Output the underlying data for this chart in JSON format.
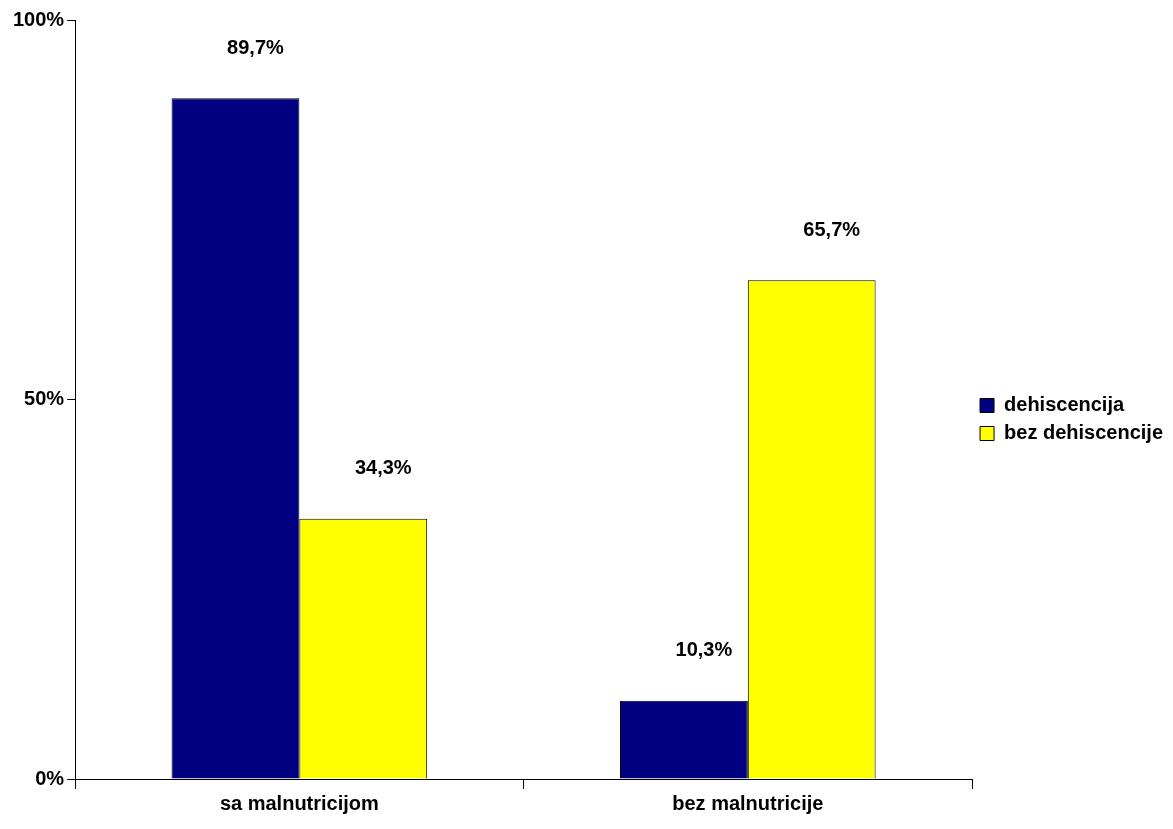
{
  "chart_data": {
    "type": "bar",
    "categories": [
      "sa malnutricijom",
      "bez malnutricije"
    ],
    "series": [
      {
        "name": "dehiscencija",
        "color": "#000080",
        "values": [
          89.7,
          10.3
        ],
        "value_labels": [
          "89,7%",
          "10,3%"
        ]
      },
      {
        "name": "bez dehiscencije",
        "color": "#ffff00",
        "values": [
          34.3,
          65.7
        ],
        "value_labels": [
          "34,3%",
          "65,7%"
        ]
      }
    ],
    "ylim": [
      0,
      100
    ],
    "yticks": [
      {
        "value": 0,
        "label": "0%"
      },
      {
        "value": 50,
        "label": "50%"
      },
      {
        "value": 100,
        "label": "100%"
      }
    ],
    "grid": false,
    "legend": "right"
  }
}
